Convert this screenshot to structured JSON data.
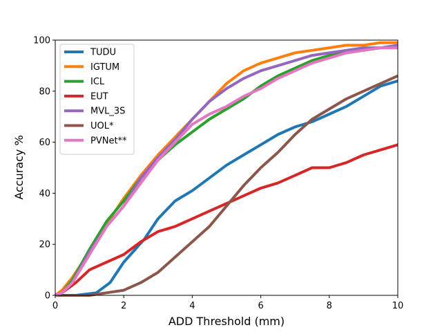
{
  "chart_data": {
    "type": "line",
    "xlabel": "ADD Threshold (mm)",
    "ylabel": "Accuracy %",
    "xlim": [
      0,
      10
    ],
    "ylim": [
      0,
      100
    ],
    "xticks": [
      0,
      2,
      4,
      6,
      8,
      10
    ],
    "yticks": [
      0,
      20,
      40,
      60,
      80,
      100
    ],
    "grid": false,
    "legend_position": "top-left",
    "series": [
      {
        "name": "TUDU",
        "color": "#1f77b4",
        "x": [
          0,
          0.6,
          1.2,
          1.6,
          2,
          2.6,
          3,
          3.5,
          4,
          4.5,
          5,
          5.5,
          6,
          6.5,
          7,
          7.5,
          8,
          8.5,
          9,
          9.5,
          10
        ],
        "y": [
          0,
          0,
          1,
          5,
          13,
          22,
          30,
          37,
          41,
          46,
          51,
          55,
          59,
          63,
          66,
          68,
          71,
          74,
          78,
          82,
          84
        ]
      },
      {
        "name": "IGTUM",
        "color": "#ff7f0e",
        "x": [
          0,
          0.2,
          0.5,
          1,
          1.5,
          2,
          2.5,
          3,
          3.5,
          4,
          4.5,
          5,
          5.5,
          6,
          6.5,
          7,
          7.5,
          8,
          8.5,
          9,
          9.5,
          10
        ],
        "y": [
          0,
          2,
          7,
          17,
          28,
          38,
          47,
          55,
          62,
          69,
          76,
          83,
          88,
          91,
          93,
          95,
          96,
          97,
          98,
          98,
          99,
          99
        ]
      },
      {
        "name": "ICL",
        "color": "#2ca02c",
        "x": [
          0,
          0.2,
          0.5,
          1,
          1.5,
          2,
          2.5,
          3,
          3.5,
          4,
          4.5,
          5,
          5.5,
          6,
          6.5,
          7,
          7.5,
          8,
          8.5,
          9,
          9.5,
          10
        ],
        "y": [
          0,
          1,
          6,
          18,
          29,
          37,
          46,
          53,
          59,
          64,
          69,
          73,
          77,
          82,
          86,
          89,
          92,
          94,
          95,
          96,
          97,
          97
        ]
      },
      {
        "name": "EUT",
        "color": "#d62728",
        "x": [
          0,
          0.2,
          0.6,
          1,
          1.5,
          2,
          2.5,
          3,
          3.5,
          4,
          4.5,
          5,
          5.5,
          6,
          6.5,
          7,
          7.5,
          8,
          8.5,
          9,
          9.5,
          10
        ],
        "y": [
          0,
          1,
          5,
          10,
          13,
          16,
          21,
          25,
          27,
          30,
          33,
          36,
          39,
          42,
          44,
          47,
          50,
          50,
          52,
          55,
          57,
          59
        ]
      },
      {
        "name": "MVL_3S",
        "color": "#9467bd",
        "x": [
          0,
          0.2,
          0.5,
          1,
          1.5,
          2,
          2.5,
          3,
          3.5,
          4,
          4.5,
          5,
          5.5,
          6,
          6.5,
          7,
          7.5,
          8,
          8.5,
          9,
          9.5,
          10
        ],
        "y": [
          0,
          1,
          5,
          17,
          27,
          35,
          46,
          54,
          61,
          69,
          76,
          81,
          85,
          88,
          90,
          92,
          94,
          95,
          96,
          97,
          97,
          98
        ]
      },
      {
        "name": "UOL*",
        "color": "#8c564b",
        "x": [
          0,
          1,
          1.5,
          2,
          2.5,
          3,
          3.5,
          4,
          4.5,
          5,
          5.5,
          6,
          6.5,
          7,
          7.5,
          8,
          8.5,
          9,
          9.5,
          10
        ],
        "y": [
          0,
          0,
          1,
          2,
          5,
          9,
          15,
          21,
          27,
          35,
          43,
          50,
          56,
          63,
          69,
          73,
          77,
          80,
          83,
          86
        ]
      },
      {
        "name": "PVNet**",
        "color": "#e377c2",
        "x": [
          0,
          0.2,
          0.5,
          1,
          1.5,
          2,
          2.5,
          3,
          3.5,
          4,
          4.5,
          5,
          5.5,
          6,
          6.5,
          7,
          7.5,
          8,
          8.5,
          9,
          9.5,
          10
        ],
        "y": [
          0,
          1,
          5,
          16,
          27,
          35,
          44,
          53,
          60,
          67,
          71,
          74,
          78,
          81,
          85,
          88,
          91,
          93,
          95,
          96,
          97,
          97
        ]
      }
    ]
  }
}
